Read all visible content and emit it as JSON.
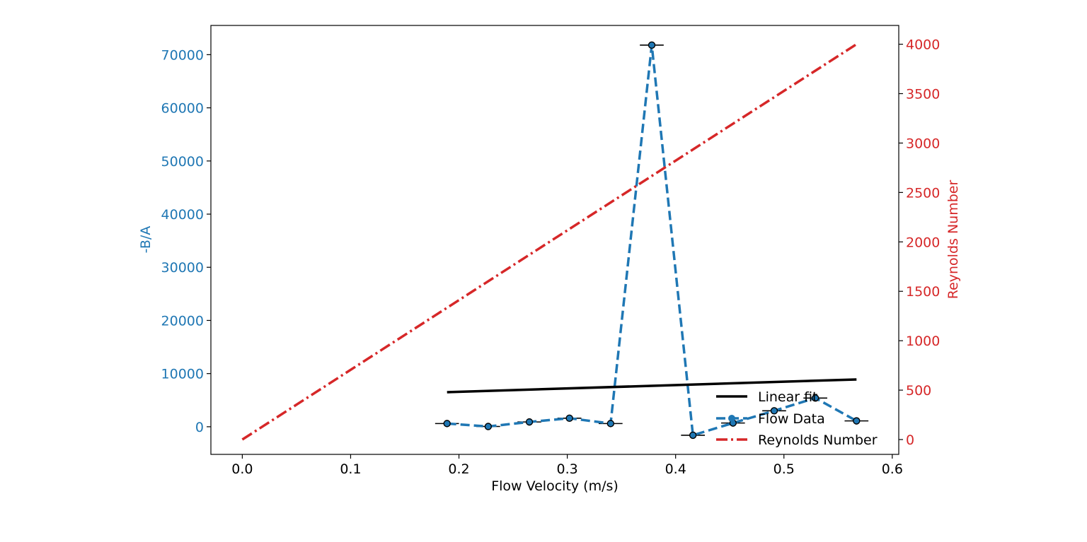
{
  "chart_data": {
    "type": "line",
    "xlabel": "Flow Velocity (m/s)",
    "ylabel_left": "-B/A",
    "ylabel_right": "Reynolds Number",
    "xlim": [
      -0.029,
      0.606
    ],
    "ylim_left": [
      -5200,
      75500
    ],
    "ylim_right": [
      -150,
      4190
    ],
    "x_ticks": [
      0.0,
      0.1,
      0.2,
      0.3,
      0.4,
      0.5,
      0.6
    ],
    "x_tick_labels": [
      "0.0",
      "0.1",
      "0.2",
      "0.3",
      "0.4",
      "0.5",
      "0.6"
    ],
    "y_left_ticks": [
      0,
      10000,
      20000,
      30000,
      40000,
      50000,
      60000,
      70000
    ],
    "y_left_tick_labels": [
      "0",
      "10000",
      "20000",
      "30000",
      "40000",
      "50000",
      "60000",
      "70000"
    ],
    "y_right_ticks": [
      0,
      500,
      1000,
      1500,
      2000,
      2500,
      3000,
      3500,
      4000
    ],
    "y_right_tick_labels": [
      "0",
      "500",
      "1000",
      "1500",
      "2000",
      "2500",
      "3000",
      "3500",
      "4000"
    ],
    "colors": {
      "left_axis": "#1f77b4",
      "right_axis": "#d62728",
      "fit": "#000000",
      "errorbar": "#000000"
    },
    "legend_position": "lower-right",
    "series": [
      {
        "name": "Flow Data",
        "axis": "left",
        "style": "dashed-markers",
        "color": "#1f77b4",
        "x": [
          0.189,
          0.227,
          0.265,
          0.302,
          0.34,
          0.378,
          0.416,
          0.453,
          0.491,
          0.529,
          0.567
        ],
        "y": [
          600,
          50,
          900,
          1600,
          600,
          71800,
          -1600,
          700,
          3000,
          5400,
          1100
        ],
        "xerr": 0.011
      },
      {
        "name": "Linear fit",
        "axis": "left",
        "style": "solid",
        "color": "#000000",
        "x": [
          0.189,
          0.567
        ],
        "y": [
          6500,
          8900
        ]
      },
      {
        "name": "Reynolds Number",
        "axis": "right",
        "style": "dashdot",
        "color": "#d62728",
        "x": [
          0.0,
          0.567
        ],
        "y": [
          0,
          4000
        ]
      }
    ],
    "legend": [
      "Linear fit",
      "Flow Data",
      "Reynolds Number"
    ]
  }
}
